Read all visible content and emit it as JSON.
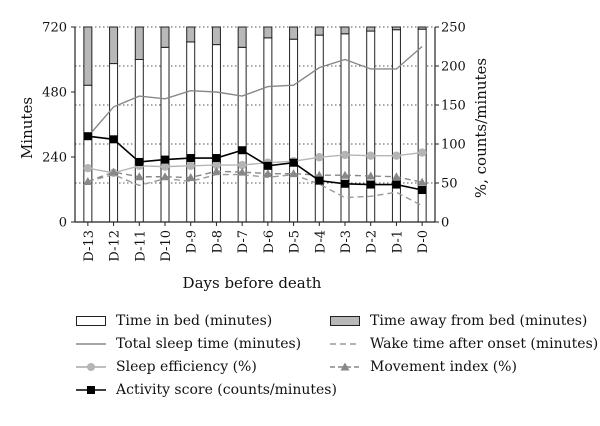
{
  "chart_data": {
    "type": "bar",
    "categories": [
      "D-13",
      "D-12",
      "D-11",
      "D-10",
      "D-9",
      "D-8",
      "D-7",
      "D-6",
      "D-5",
      "D-4",
      "D-3",
      "D-2",
      "D-1",
      "D-0"
    ],
    "xlabel": "Days before death",
    "ylabel_left": "Minutes",
    "ylabel_right": "%, counts/minutes",
    "ylim_left": [
      0,
      720
    ],
    "yticks_left": [
      "0",
      "240",
      "480",
      "720"
    ],
    "ylim_right": [
      0,
      250
    ],
    "yticks_right": [
      "0",
      "50",
      "100",
      "150",
      "200",
      "250"
    ],
    "grid": "dotted horizontal",
    "bars_stacked": [
      {
        "name": "Time in bed (minutes)",
        "axis": "left",
        "color": "#ffffff",
        "values": [
          505,
          585,
          600,
          645,
          665,
          655,
          645,
          680,
          675,
          690,
          695,
          705,
          710,
          712
        ]
      },
      {
        "name": "Time away from bed (minutes)",
        "axis": "left",
        "color": "#b8b8b8",
        "values": [
          215,
          135,
          120,
          75,
          55,
          65,
          75,
          40,
          45,
          30,
          25,
          15,
          10,
          8
        ]
      }
    ],
    "lines": [
      {
        "name": "Total sleep time (minutes)",
        "axis": "left",
        "style": "solid",
        "color": "#888888",
        "marker": "none",
        "values": [
          315,
          425,
          465,
          455,
          485,
          480,
          465,
          500,
          505,
          570,
          600,
          565,
          565,
          648
        ]
      },
      {
        "name": "Wake time after onset (minutes)",
        "axis": "left",
        "style": "dashed",
        "color": "#9a9a9a",
        "marker": "none",
        "values": [
          150,
          175,
          135,
          160,
          150,
          175,
          175,
          165,
          175,
          140,
          90,
          95,
          110,
          60
        ]
      },
      {
        "name": "Sleep efficiency (%)",
        "axis": "right",
        "style": "solid",
        "color": "#b5b5b5",
        "marker": "circle",
        "values": [
          69,
          63,
          72,
          71,
          72,
          73,
          73,
          76,
          78,
          83,
          86,
          85,
          85,
          89
        ]
      },
      {
        "name": "Movement index (%)",
        "axis": "right",
        "style": "dashed",
        "color": "#888888",
        "marker": "triangle",
        "values": [
          52,
          64,
          58,
          58,
          57,
          65,
          64,
          62,
          62,
          60,
          60,
          59,
          58,
          51
        ]
      },
      {
        "name": "Activity score (counts/minutes)",
        "axis": "right",
        "style": "solid",
        "color": "#000000",
        "marker": "square",
        "values": [
          110,
          106,
          77,
          80,
          82,
          82,
          92,
          72,
          76,
          53,
          49,
          48,
          48,
          41
        ]
      }
    ]
  },
  "legend": {
    "time_in_bed": "Time in bed (minutes)",
    "time_away": "Time away from bed (minutes)",
    "total_sleep": "Total sleep time (minutes)",
    "wake_after_onset": "Wake time after onset (minutes)",
    "sleep_efficiency": "Sleep efficiency (%)",
    "movement_index": "Movement index (%)",
    "activity_score": "Activity score (counts/minutes)"
  }
}
